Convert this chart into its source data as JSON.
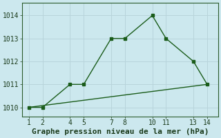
{
  "line1_x": [
    1,
    2,
    4,
    5,
    7,
    8,
    10,
    11,
    13,
    14
  ],
  "line1_y": [
    1010,
    1010,
    1011,
    1011,
    1013,
    1013,
    1014,
    1013,
    1012,
    1011
  ],
  "line2_x": [
    1,
    14
  ],
  "line2_y": [
    1010,
    1011
  ],
  "line_color": "#1a5c1a",
  "bg_color": "#cce8ee",
  "grid_color": "#b8d4db",
  "xlabel": "Graphe pression niveau de la mer (hPa)",
  "xticks": [
    1,
    2,
    4,
    5,
    7,
    8,
    10,
    11,
    13,
    14
  ],
  "yticks": [
    1010,
    1011,
    1012,
    1013,
    1014
  ],
  "xlim": [
    0.5,
    14.8
  ],
  "ylim": [
    1009.6,
    1014.55
  ],
  "tick_fontsize": 7,
  "xlabel_fontsize": 8
}
